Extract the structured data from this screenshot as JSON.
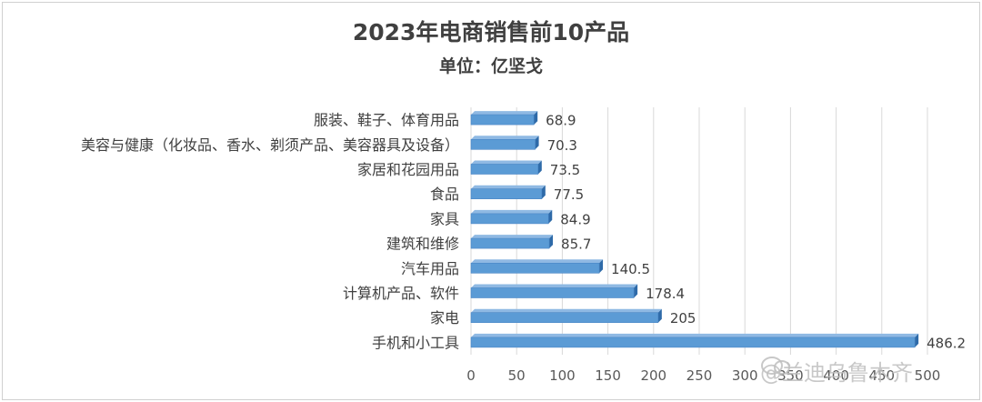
{
  "chart_data": {
    "type": "bar",
    "orientation": "horizontal",
    "title": "2023年电商销售前10产品",
    "subtitle": "单位：亿坚戈",
    "categories": [
      "服装、鞋子、体育用品",
      "美容与健康（化妆品、香水、剃须产品、美容器具及设备）",
      "家居和花园用品",
      "食品",
      "家具",
      "建筑和维修",
      "汽车用品",
      "计算机产品、软件",
      "家电",
      "手机和小工具"
    ],
    "values": [
      68.9,
      70.3,
      73.5,
      77.5,
      84.9,
      85.7,
      140.5,
      178.4,
      205,
      486.2
    ],
    "value_labels": [
      "68.9",
      "70.3",
      "73.5",
      "77.5",
      "84.9",
      "85.7",
      "140.5",
      "178.4",
      "205",
      "486.2"
    ],
    "xlim": [
      0,
      500
    ],
    "xticks": [
      0,
      50,
      100,
      150,
      200,
      250,
      300,
      350,
      400,
      450,
      500
    ],
    "grid": true,
    "bar_color": "#5b9bd5",
    "bar_dark_color": "#2e6aa8"
  },
  "watermark": "@兰迪乌鲁木齐"
}
